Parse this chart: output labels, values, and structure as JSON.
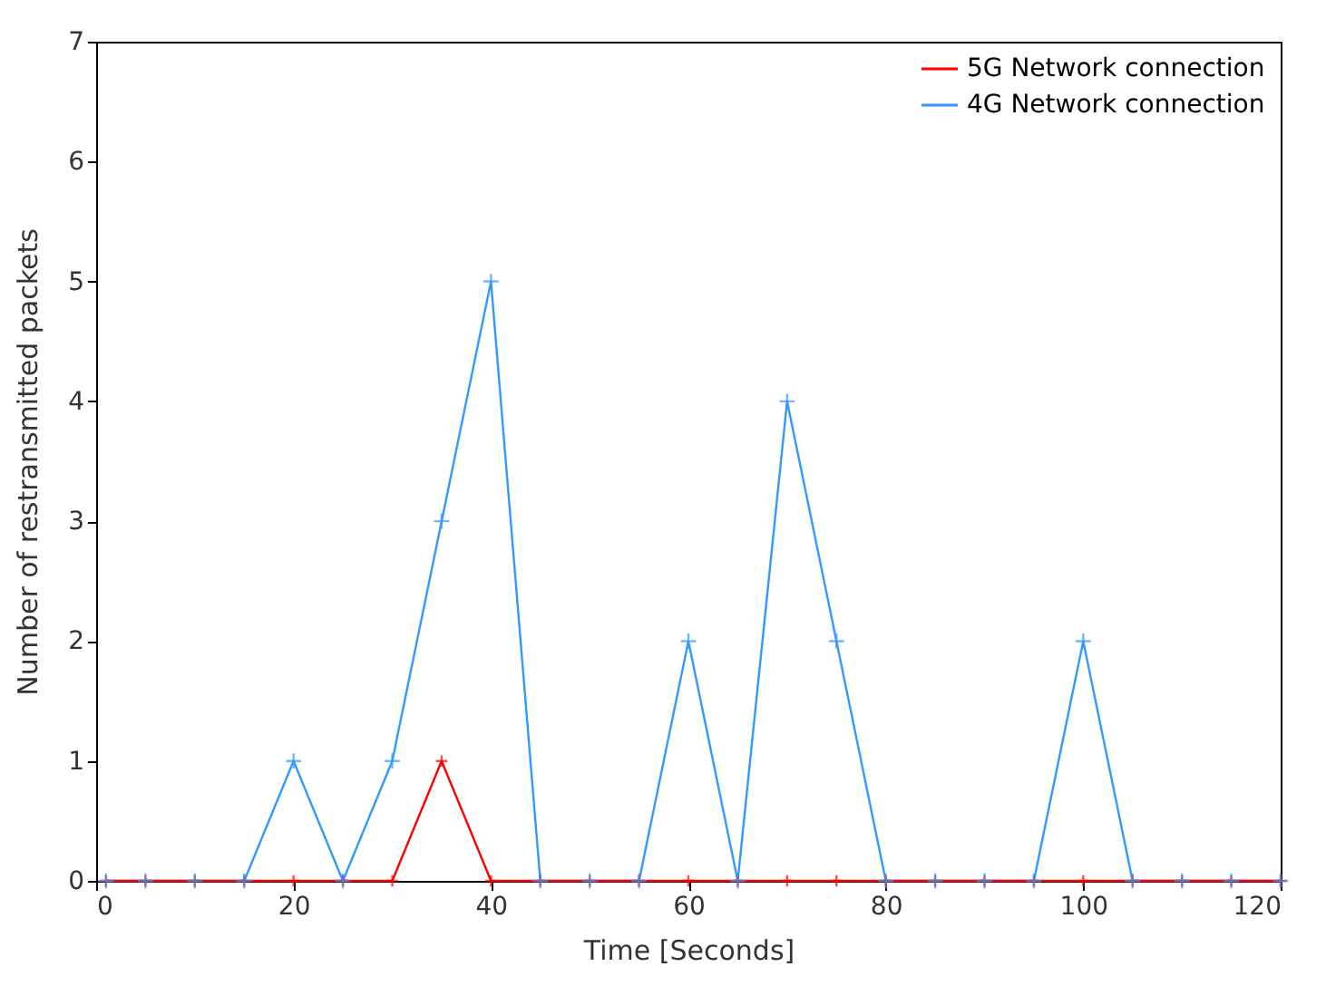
{
  "chart_data": {
    "type": "line",
    "xlabel": "Time [Seconds]",
    "ylabel": "Number of restransmitted packets",
    "x": [
      1,
      5,
      10,
      15,
      20,
      25,
      30,
      35,
      40,
      45,
      50,
      55,
      60,
      65,
      70,
      75,
      80,
      85,
      90,
      95,
      100,
      105,
      110,
      115,
      120
    ],
    "series": [
      {
        "name": "5G Network connection",
        "color": "#ff0000",
        "values": [
          0,
          0,
          0,
          0,
          0,
          0,
          0,
          1,
          0,
          0,
          0,
          0,
          0,
          0,
          0,
          0,
          0,
          0,
          0,
          0,
          0,
          0,
          0,
          0,
          0
        ]
      },
      {
        "name": "4G  Network connection",
        "color": "#3399ff",
        "values": [
          0,
          0,
          0,
          0,
          1,
          0,
          1,
          3,
          5,
          0,
          0,
          0,
          2,
          0,
          4,
          2,
          0,
          0,
          0,
          0,
          2,
          0,
          0,
          0,
          0
        ]
      }
    ],
    "xlim": [
      0,
      120
    ],
    "xticks": [
      0,
      20,
      40,
      60,
      80,
      100,
      120
    ],
    "ylim": [
      0,
      7
    ],
    "yticks": [
      0,
      1,
      2,
      3,
      4,
      5,
      6,
      7
    ],
    "grid": false,
    "legend": "top right",
    "marker": "cross",
    "line_style": "solid"
  }
}
